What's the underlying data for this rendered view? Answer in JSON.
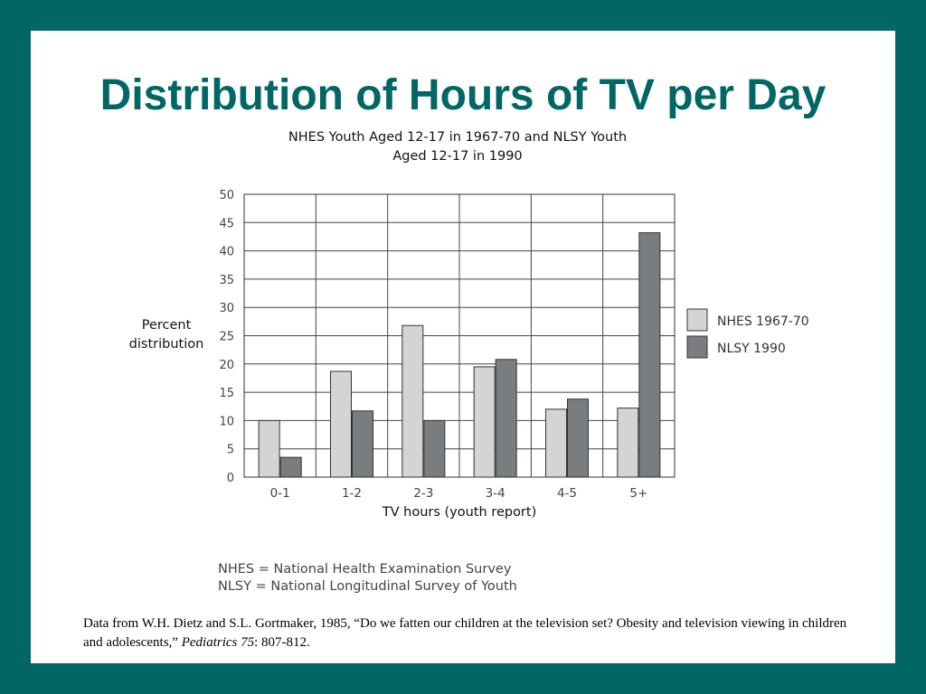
{
  "slide": {
    "title": "Distribution of Hours of TV per Day",
    "footnote": {
      "prefix": "Data from W.H. Dietz and S.L. Gortmaker, 1985, “Do we fatten our children at the television set? Obesity and television viewing in children and adolescents,” ",
      "journal": "Pediatrics 75",
      "suffix": ": 807-812."
    },
    "abbreviations": [
      "NHES = National Health Examination Survey",
      "NLSY = National Longitudinal Survey of Youth"
    ]
  },
  "colors": {
    "background": "#006666",
    "title": "#006666",
    "nhes_bar": "#d4d4d4",
    "nlsy_bar": "#7a7d80"
  },
  "chart_data": {
    "type": "bar",
    "title_lines": [
      "NHES Youth Aged 12-17 in 1967-70 and NLSY Youth",
      "Aged 12-17 in 1990"
    ],
    "ylabel_lines": [
      "Percent",
      "distribution"
    ],
    "xlabel": "TV hours (youth report)",
    "categories": [
      "0-1",
      "1-2",
      "2-3",
      "3-4",
      "4-5",
      "5+"
    ],
    "ylim": [
      0,
      50
    ],
    "yticks": [
      0,
      5,
      10,
      15,
      20,
      25,
      30,
      35,
      40,
      45,
      50
    ],
    "grid": true,
    "legend_position": "right",
    "series": [
      {
        "name": "NHES 1967-70",
        "values": [
          10,
          18.7,
          26.8,
          19.5,
          12,
          12.2
        ]
      },
      {
        "name": "NLSY 1990",
        "values": [
          3.5,
          11.7,
          10,
          20.8,
          13.8,
          43.2
        ]
      }
    ]
  }
}
